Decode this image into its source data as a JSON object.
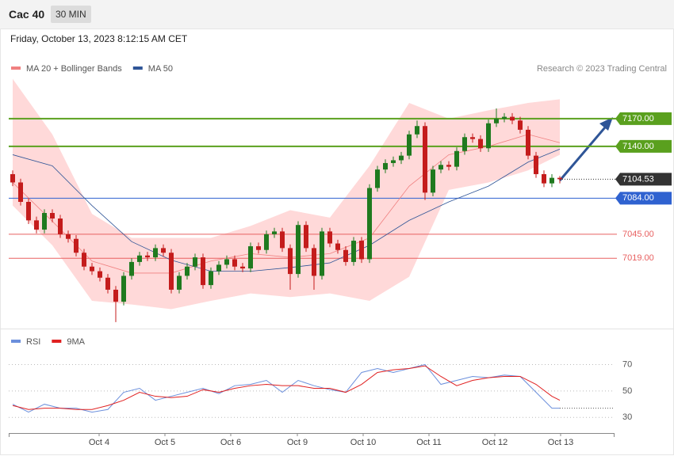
{
  "header": {
    "title": "Cac 40",
    "timeframe": "30 MIN",
    "timestamp": "Friday, October 13, 2023 8:12:15 AM CET"
  },
  "chart_data": [
    {
      "type": "candlestick",
      "credit": "Research © 2023 Trading Central",
      "xlim": [
        -0.5,
        75.9
      ],
      "ylim": [
        6943,
        7217
      ],
      "up_color": "#1f7a1f",
      "down_color": "#c41c1c",
      "open": [
        7110,
        7101,
        7080,
        7060,
        7050,
        7068,
        7062,
        7045,
        7040,
        7025,
        7010,
        7005,
        6998,
        6985,
        6972,
        7000,
        7015,
        7022,
        7020,
        7030,
        7025,
        6985,
        7000,
        7010,
        7020,
        6990,
        7005,
        7012,
        7018,
        7010,
        7008,
        7032,
        7028,
        7045,
        7048,
        7030,
        7002,
        7055,
        7030,
        7000,
        7048,
        7035,
        7028,
        7015,
        7038,
        7018,
        7095,
        7115,
        7122,
        7125,
        7130,
        7153,
        7162,
        7090,
        7115,
        7120,
        7118,
        7135,
        7150,
        7148,
        7138,
        7165,
        7170,
        7172,
        7168,
        7158,
        7130,
        7110,
        7100,
        7106
      ],
      "high": [
        7114,
        7105,
        7084,
        7064,
        7072,
        7072,
        7066,
        7049,
        7044,
        7029,
        7014,
        7009,
        7002,
        6989,
        7004,
        7019,
        7026,
        7026,
        7034,
        7034,
        7029,
        7004,
        7014,
        7024,
        7024,
        7009,
        7016,
        7022,
        7022,
        7014,
        7036,
        7036,
        7049,
        7052,
        7052,
        7034,
        7059,
        7059,
        7034,
        7052,
        7052,
        7039,
        7032,
        7042,
        7042,
        7099,
        7119,
        7126,
        7129,
        7134,
        7157,
        7168,
        7166,
        7119,
        7124,
        7124,
        7139,
        7154,
        7154,
        7152,
        7169,
        7181,
        7176,
        7176,
        7172,
        7162,
        7134,
        7114,
        7110,
        7108
      ],
      "low": [
        7097,
        7076,
        7056,
        7046,
        7046,
        7058,
        7041,
        7036,
        7021,
        7006,
        7001,
        6994,
        6981,
        6950,
        6968,
        6996,
        7011,
        7016,
        7016,
        7021,
        6981,
        6981,
        6996,
        7006,
        6986,
        6986,
        7001,
        7008,
        7006,
        7004,
        7004,
        7024,
        7024,
        7041,
        7026,
        6985,
        6998,
        7026,
        6985,
        6996,
        7031,
        7024,
        7011,
        7011,
        7014,
        7014,
        7091,
        7111,
        7118,
        7121,
        7126,
        7149,
        7082,
        7086,
        7111,
        7114,
        7114,
        7131,
        7144,
        7134,
        7134,
        7161,
        7166,
        7164,
        7154,
        7126,
        7106,
        7096,
        7096,
        7100
      ],
      "close": [
        7101,
        7080,
        7060,
        7050,
        7068,
        7062,
        7045,
        7040,
        7025,
        7010,
        7005,
        6998,
        6985,
        6972,
        7000,
        7015,
        7022,
        7020,
        7030,
        7025,
        6985,
        7000,
        7010,
        7020,
        6990,
        7005,
        7012,
        7018,
        7010,
        7008,
        7032,
        7028,
        7045,
        7048,
        7030,
        7002,
        7055,
        7030,
        7000,
        7048,
        7035,
        7028,
        7015,
        7038,
        7018,
        7095,
        7115,
        7122,
        7125,
        7130,
        7153,
        7162,
        7090,
        7115,
        7120,
        7118,
        7135,
        7150,
        7148,
        7138,
        7165,
        7170,
        7172,
        7168,
        7158,
        7130,
        7110,
        7100,
        7106,
        7104.53
      ],
      "series": [
        {
          "name": "MA 20 + Bollinger Bands",
          "color": "#f08080",
          "band_color": "#ffd9d9",
          "x": [
            0,
            5,
            10,
            15,
            20,
            25,
            30,
            35,
            40,
            45,
            50,
            55,
            60,
            65,
            69
          ],
          "values": [
            7101,
            7059,
            7016,
            7003,
            7003,
            7016,
            7024,
            7020,
            7024,
            7041,
            7097,
            7131,
            7140,
            7153,
            7144
          ],
          "upper": [
            7213,
            7153,
            7067,
            7041,
            7041,
            7041,
            7054,
            7071,
            7063,
            7119,
            7187,
            7170,
            7179,
            7187,
            7191
          ],
          "lower": [
            7076,
            7033,
            6973,
            6969,
            6964,
            6973,
            6981,
            6977,
            6981,
            6973,
            6999,
            7093,
            7101,
            7114,
            7131
          ]
        },
        {
          "name": "MA 50",
          "color": "#2f5597",
          "x": [
            0,
            5,
            10,
            15,
            20,
            25,
            30,
            35,
            40,
            45,
            50,
            55,
            60,
            65,
            69
          ],
          "values": [
            7131,
            7119,
            7076,
            7037,
            7017,
            7005,
            7005,
            7009,
            7014,
            7033,
            7060,
            7080,
            7097,
            7123,
            7137
          ]
        }
      ],
      "levels": [
        {
          "value": 7170,
          "label": "7170.00",
          "color": "#5aa01e",
          "style": "box"
        },
        {
          "value": 7140,
          "label": "7140.00",
          "color": "#5aa01e",
          "style": "box"
        },
        {
          "value": 7104.53,
          "label": "7104.53",
          "color": "#333333",
          "style": "current"
        },
        {
          "value": 7084,
          "label": "7084.00",
          "color": "#2f62d0",
          "style": "box"
        },
        {
          "value": 7045,
          "label": "7045.00",
          "color": "#e86060",
          "style": "text"
        },
        {
          "value": 7019,
          "label": "7019.00",
          "color": "#e86060",
          "style": "text"
        }
      ]
    },
    {
      "type": "line",
      "xlim": [
        -0.5,
        75.9
      ],
      "ylim": [
        20,
        96
      ],
      "yticks": [
        30,
        50,
        70
      ],
      "xticks": [
        {
          "value": 10.9,
          "label": "Oct 4"
        },
        {
          "value": 19.2,
          "label": "Oct 5"
        },
        {
          "value": 27.5,
          "label": "Oct 6"
        },
        {
          "value": 35.9,
          "label": "Oct 9"
        },
        {
          "value": 44.2,
          "label": "Oct 10"
        },
        {
          "value": 52.5,
          "label": "Oct 11"
        },
        {
          "value": 60.8,
          "label": "Oct 12"
        },
        {
          "value": 69.1,
          "label": "Oct 13"
        }
      ],
      "series": [
        {
          "name": "RSI",
          "color": "#6b8fdc",
          "x": [
            0,
            2,
            4,
            6,
            8,
            10,
            12,
            14,
            16,
            18,
            20,
            22,
            24,
            26,
            28,
            30,
            32,
            34,
            36,
            38,
            40,
            42,
            44,
            46,
            48,
            50,
            52,
            54,
            56,
            58,
            60,
            62,
            64,
            66,
            68,
            69
          ],
          "values": [
            40,
            34,
            40,
            37,
            37,
            34,
            36,
            49,
            52,
            43,
            46,
            49,
            52,
            48,
            54,
            55,
            58,
            49,
            58,
            54,
            51,
            49,
            64,
            67,
            64,
            67,
            70,
            55,
            58,
            61,
            60,
            62,
            61,
            49,
            37,
            37
          ]
        },
        {
          "name": "9MA",
          "color": "#e02020",
          "x": [
            0,
            2,
            4,
            6,
            8,
            10,
            12,
            14,
            16,
            18,
            20,
            22,
            24,
            26,
            28,
            30,
            32,
            34,
            36,
            38,
            40,
            42,
            44,
            46,
            48,
            50,
            52,
            54,
            56,
            58,
            60,
            62,
            64,
            66,
            68,
            69
          ],
          "values": [
            39,
            36,
            37,
            37,
            36,
            36,
            39,
            43,
            49,
            46,
            45,
            46,
            51,
            49,
            52,
            54,
            55,
            54,
            54,
            52,
            52,
            49,
            55,
            64,
            66,
            67,
            69,
            61,
            54,
            58,
            60,
            61,
            61,
            55,
            46,
            43
          ]
        }
      ]
    }
  ]
}
